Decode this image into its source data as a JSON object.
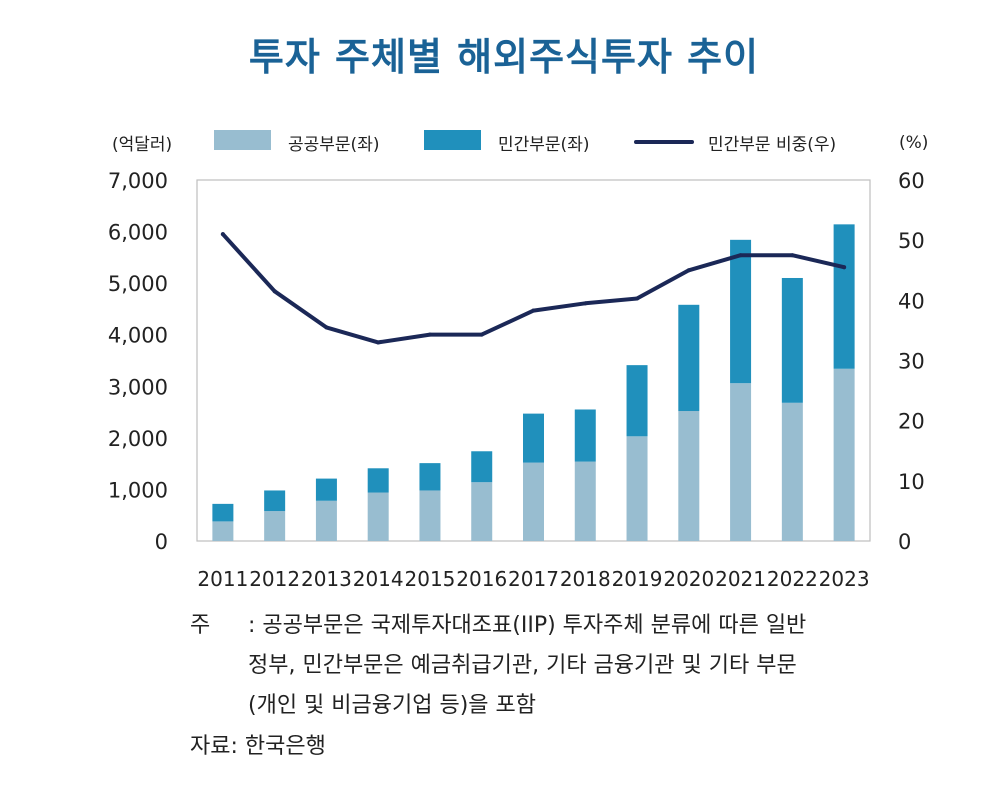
{
  "chart_data": {
    "type": "bar",
    "title": "투자 주체별 해외주식투자 추이",
    "categories": [
      "2011",
      "2012",
      "2013",
      "2014",
      "2015",
      "2016",
      "2017",
      "2018",
      "2019",
      "2020",
      "2021",
      "2022",
      "2023"
    ],
    "series": [
      {
        "name": "공공부문(좌)",
        "type": "bar",
        "stack": "total",
        "axis": "left",
        "color": "#98bdd0",
        "values": [
          380,
          580,
          780,
          940,
          980,
          1140,
          1520,
          1540,
          2030,
          2520,
          3060,
          2680,
          3340
        ]
      },
      {
        "name": "민간부문(좌)",
        "type": "bar",
        "stack": "total",
        "axis": "left",
        "color": "#2090bc",
        "values": [
          340,
          400,
          430,
          470,
          530,
          600,
          950,
          1010,
          1380,
          2060,
          2780,
          2420,
          2800
        ]
      },
      {
        "name": "민간부문 비중(우)",
        "type": "line",
        "axis": "right",
        "color": "#1b2857",
        "values": [
          51.0,
          41.5,
          35.5,
          33.0,
          34.3,
          34.3,
          38.3,
          39.5,
          40.3,
          45.0,
          47.5,
          47.5,
          45.5
        ]
      }
    ],
    "ylabel_left": "(억달러)",
    "ylabel_right": "(%)",
    "ylim_left": [
      0,
      7000
    ],
    "ylim_right": [
      0,
      60
    ],
    "yticks_left": [
      "7,000",
      "6,000",
      "5,000",
      "4,000",
      "3,000",
      "2,000",
      "1,000",
      "0"
    ],
    "yticks_right": [
      "60",
      "50",
      "40",
      "30",
      "20",
      "10",
      "0"
    ],
    "legend": [
      "공공부문(좌)",
      "민간부문(좌)",
      "민간부문 비중(우)"
    ],
    "legend_position": "top"
  },
  "notes": {
    "label": "주",
    "line1": ": 공공부문은 국제투자대조표(IIP) 투자주체 분류에 따른 일반",
    "line2": "정부, 민간부문은 예금취급기관, 기타 금융기관 및 기타 부문",
    "line3": "(개인 및 비금융기업 등)을 포함",
    "source": "자료: 한국은행"
  }
}
